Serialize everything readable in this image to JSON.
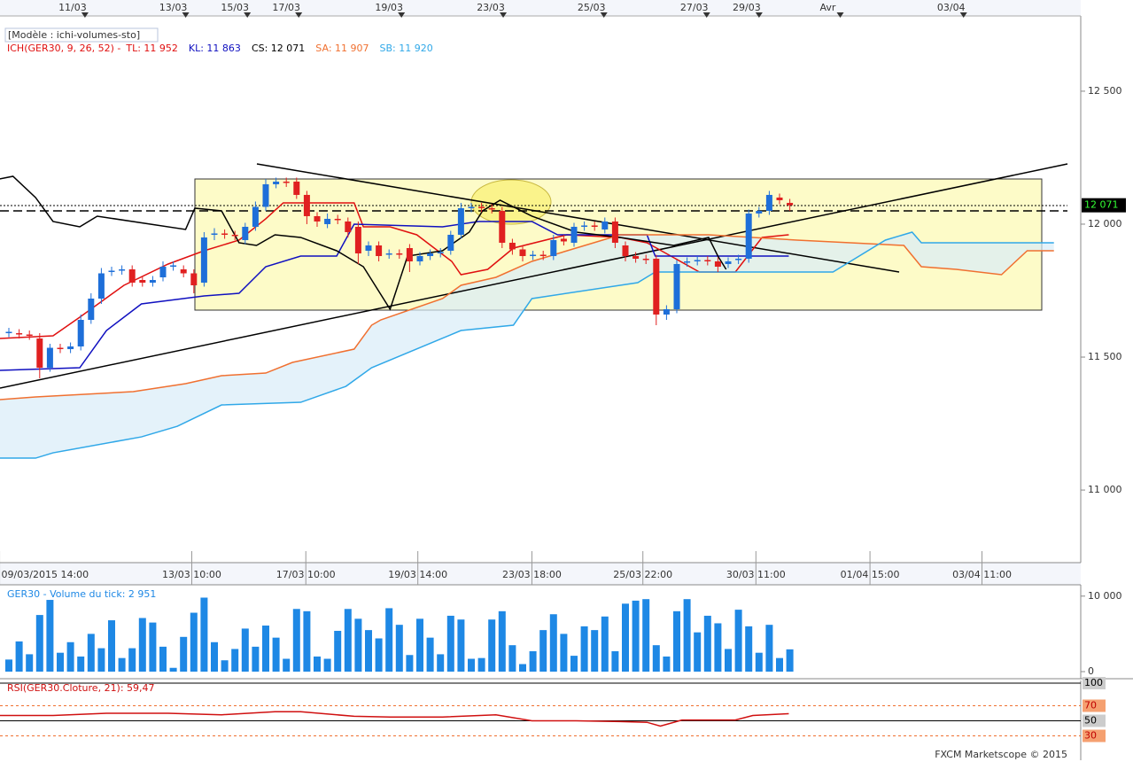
{
  "chart_data": [
    {
      "type": "candlestick",
      "model_label": "[Modèle : ichi-volumes-sto]",
      "subtitle": "ICH(GER30, 9, 26, 52) -",
      "top_xticks": [
        {
          "value": 6.2,
          "label": "11/03"
        },
        {
          "value": 16.0,
          "label": "13/03"
        },
        {
          "value": 22.0,
          "label": "15/03"
        },
        {
          "value": 27.0,
          "label": "17/03"
        },
        {
          "value": 37.0,
          "label": "19/03"
        },
        {
          "value": 46.9,
          "label": "23/03"
        },
        {
          "value": 56.7,
          "label": "25/03"
        },
        {
          "value": 66.7,
          "label": "27/03"
        },
        {
          "value": 71.8,
          "label": "29/03"
        },
        {
          "value": 79.7,
          "label": "Avr"
        },
        {
          "value": 91.7,
          "label": "03/04"
        }
      ],
      "xticks": [
        {
          "value": -0.9,
          "label": "09/03/2015 14:00"
        },
        {
          "value": 17.8,
          "label": "13/03 10:00"
        },
        {
          "value": 28.9,
          "label": "17/03 10:00"
        },
        {
          "value": 39.8,
          "label": "19/03 14:00"
        },
        {
          "value": 50.9,
          "label": "23/03 18:00"
        },
        {
          "value": 61.7,
          "label": "25/03 22:00"
        },
        {
          "value": 72.7,
          "label": "30/03 11:00"
        },
        {
          "value": 83.8,
          "label": "01/04 15:00"
        },
        {
          "value": 94.7,
          "label": "03/04 11:00"
        }
      ],
      "open": [
        11590,
        11590,
        11585,
        11570,
        11460,
        11535,
        11530,
        11540,
        11640,
        11720,
        11820,
        11825,
        11830,
        11790,
        11780,
        11800,
        11840,
        11830,
        11815,
        11780,
        11960,
        11965,
        11960,
        11940,
        11990,
        12065,
        12150,
        12160,
        12160,
        12110,
        12030,
        12000,
        12020,
        12010,
        11990,
        11900,
        11920,
        11885,
        11890,
        11910,
        11860,
        11880,
        11890,
        11900,
        11960,
        12060,
        12065,
        12060,
        12050,
        11930,
        11905,
        11880,
        11885,
        11880,
        11945,
        11930,
        11990,
        11995,
        11980,
        12010,
        11920,
        11880,
        11870,
        11870,
        11660,
        11680,
        11855,
        11860,
        11865,
        11860,
        11850,
        11865,
        11870,
        12040,
        12050,
        12100,
        12080
      ],
      "high": [
        11610,
        11605,
        11600,
        11590,
        11550,
        11550,
        11555,
        11660,
        11740,
        11835,
        11840,
        11845,
        11845,
        11805,
        11805,
        11860,
        11860,
        11845,
        11830,
        11970,
        11985,
        11980,
        11975,
        12005,
        12085,
        12170,
        12175,
        12175,
        12175,
        12125,
        12045,
        12040,
        12035,
        12025,
        12010,
        11935,
        11935,
        11905,
        11905,
        11925,
        11895,
        11905,
        11910,
        11975,
        12080,
        12080,
        12080,
        12075,
        12065,
        11945,
        11920,
        11900,
        11900,
        11960,
        11960,
        12005,
        12010,
        12010,
        12025,
        12025,
        11935,
        11895,
        11885,
        11885,
        11695,
        11865,
        11875,
        11880,
        11880,
        11875,
        11875,
        11885,
        12055,
        12065,
        12125,
        12115,
        12095
      ],
      "low": [
        11575,
        11570,
        11565,
        11420,
        11445,
        11515,
        11515,
        11525,
        11625,
        11700,
        11805,
        11810,
        11765,
        11765,
        11765,
        11785,
        11825,
        11800,
        11740,
        11765,
        11940,
        11945,
        11940,
        11925,
        11975,
        12050,
        12135,
        12140,
        12095,
        12000,
        11990,
        11985,
        12000,
        11950,
        11850,
        11880,
        11860,
        11870,
        11870,
        11820,
        11845,
        11865,
        11875,
        11885,
        11945,
        12045,
        12045,
        12040,
        11910,
        11885,
        11860,
        11865,
        11865,
        11865,
        11920,
        11915,
        11975,
        11975,
        11965,
        11910,
        11860,
        11855,
        11850,
        11620,
        11640,
        11665,
        11840,
        11845,
        11845,
        11820,
        11835,
        11850,
        11855,
        12025,
        12035,
        12075,
        12050
      ],
      "close": [
        11595,
        11585,
        11580,
        11460,
        11535,
        11530,
        11540,
        11640,
        11720,
        11815,
        11825,
        11830,
        11780,
        11780,
        11790,
        11840,
        11845,
        11815,
        11770,
        11950,
        11965,
        11960,
        11955,
        11990,
        12065,
        12150,
        12160,
        12155,
        12110,
        12030,
        12010,
        12020,
        12015,
        11970,
        11890,
        11920,
        11880,
        11890,
        11885,
        11860,
        11880,
        11890,
        11895,
        11960,
        12060,
        12065,
        12060,
        12055,
        11930,
        11905,
        11880,
        11885,
        11880,
        11940,
        11935,
        11990,
        11995,
        11990,
        12010,
        11930,
        11880,
        11870,
        11865,
        11660,
        11680,
        11850,
        11860,
        11865,
        11860,
        11840,
        11860,
        11870,
        12040,
        12050,
        12110,
        12090,
        12071
      ],
      "up_color": "#1e6fd9",
      "down_color": "#e02020",
      "ylim": [
        10727,
        12783
      ],
      "yticks": [
        {
          "value": 11000,
          "label": "11 000"
        },
        {
          "value": 11500,
          "label": "11 500"
        },
        {
          "value": 12000,
          "label": "12 000"
        },
        {
          "value": 12500,
          "label": "12 500"
        }
      ],
      "last_price": {
        "value": 12071,
        "label": "12 071"
      },
      "lines": [
        {
          "name": "TL: 11 952",
          "color": "#e01010",
          "x": [
            -0.9,
            4.3,
            6.9,
            11.2,
            15.5,
            19.0,
            22.4,
            25.0,
            26.7,
            33.6,
            34.5,
            37.1,
            39.7,
            43.1,
            44.0,
            46.6,
            49.1,
            54.3,
            59.5,
            62.1,
            67.2,
            70.7,
            73.3,
            75.9
          ],
          "values": [
            11570,
            11580,
            11650,
            11770,
            11850,
            11900,
            11940,
            12020,
            12080,
            12080,
            11990,
            11990,
            11960,
            11860,
            11810,
            11830,
            11910,
            11960,
            11950,
            11930,
            11820,
            11820,
            11950,
            11960
          ]
        },
        {
          "name": "KL: 11 863",
          "color": "#1010c0",
          "x": [
            -0.9,
            6.9,
            9.5,
            12.9,
            19.0,
            22.4,
            25.0,
            28.4,
            31.9,
            33.6,
            42.2,
            45.7,
            50.9,
            53.4,
            62.1,
            62.9,
            75.9
          ],
          "values": [
            11450,
            11460,
            11600,
            11700,
            11730,
            11740,
            11840,
            11880,
            11880,
            12000,
            11990,
            12010,
            12010,
            11960,
            11960,
            11880,
            11880
          ]
        },
        {
          "name": "CS: 12 071",
          "color": "#000000",
          "x": [
            -0.9,
            0.4,
            2.6,
            4.3,
            6.9,
            8.6,
            17.2,
            18.1,
            20.7,
            22.4,
            24.1,
            25.9,
            28.4,
            31.9,
            34.5,
            37.1,
            38.8,
            42.2,
            44.8,
            46.1,
            47.8,
            50.9,
            55.2,
            59.5,
            64.7,
            68.1,
            69.0,
            69.8
          ],
          "values": [
            12170,
            12180,
            12100,
            12010,
            11990,
            12030,
            11980,
            12060,
            12050,
            11930,
            11920,
            11960,
            11950,
            11900,
            11840,
            11680,
            11880,
            11900,
            11970,
            12050,
            12090,
            12030,
            11970,
            11950,
            11920,
            11950,
            11880,
            11830
          ]
        },
        {
          "name": "SA: 11 907",
          "color": "#f07030",
          "x": [
            -0.9,
            2.6,
            12.1,
            17.2,
            20.7,
            25.0,
            27.6,
            33.6,
            35.3,
            36.2,
            42.2,
            44.0,
            47.4,
            50.9,
            59.5,
            68.1,
            76.7,
            81.9,
            87.1,
            88.8,
            92.2,
            96.6,
            99.1,
            101.7
          ],
          "values": [
            11340,
            11350,
            11370,
            11400,
            11430,
            11440,
            11480,
            11530,
            11620,
            11640,
            11720,
            11770,
            11800,
            11860,
            11960,
            11960,
            11940,
            11930,
            11920,
            11840,
            11830,
            11810,
            11900,
            11900
          ]
        },
        {
          "name": "SB: 11 920",
          "color": "#30a8e8",
          "x": [
            -0.9,
            2.6,
            4.3,
            12.9,
            16.4,
            20.7,
            28.4,
            32.8,
            35.3,
            44.0,
            49.1,
            50.9,
            61.2,
            62.9,
            80.2,
            85.3,
            87.9,
            88.8,
            101.7
          ],
          "values": [
            11120,
            11120,
            11140,
            11200,
            11240,
            11320,
            11330,
            11390,
            11460,
            11600,
            11620,
            11720,
            11780,
            11820,
            11820,
            11940,
            11970,
            11930,
            11930
          ]
        }
      ]
    },
    {
      "type": "bar",
      "title": "GER30 - Volume du tick: 2 951",
      "color": "#1e88e5",
      "values": [
        1600,
        4000,
        2300,
        7500,
        9500,
        2500,
        3900,
        2000,
        5000,
        3100,
        6800,
        1800,
        3100,
        7100,
        6500,
        3300,
        500,
        4600,
        7800,
        9800,
        3900,
        1500,
        3000,
        5700,
        3300,
        6100,
        4500,
        1700,
        8300,
        8000,
        2000,
        1700,
        5400,
        8300,
        7000,
        5500,
        4400,
        8400,
        6200,
        2200,
        7000,
        4500,
        2300,
        7400,
        6900,
        1700,
        1800,
        6900,
        8000,
        3500,
        1000,
        2700,
        5500,
        7600,
        5000,
        2100,
        6000,
        5500,
        7300,
        2700,
        9000,
        9400,
        9600,
        3500,
        2000,
        8000,
        9600,
        5200,
        7400,
        6400,
        3000,
        8200,
        6000,
        2500,
        6200,
        1800,
        2951
      ],
      "ylim": [
        0,
        11500
      ],
      "yticks": [
        {
          "value": 10000,
          "label": "10 000"
        },
        0
      ]
    },
    {
      "type": "line",
      "title": "RSI(GER30.Cloture, 21): 59,47",
      "color": "#d01010",
      "x": [
        -0.9,
        4.3,
        9.5,
        15.5,
        20.7,
        25.9,
        28.4,
        33.6,
        37.1,
        42.2,
        47.4,
        50.9,
        55.2,
        59.5,
        62.1,
        63.4,
        65.5,
        70.7,
        72.4,
        75.9
      ],
      "values": [
        57,
        57,
        60,
        60,
        58,
        62,
        62,
        56,
        55,
        55,
        58,
        50,
        50,
        49,
        48,
        43,
        51,
        51,
        57,
        59.47
      ],
      "ylim": [
        0,
        100
      ],
      "yticks": [
        100,
        70,
        50,
        30
      ]
    }
  ],
  "footer": "FXCM Marketscope © 2015"
}
